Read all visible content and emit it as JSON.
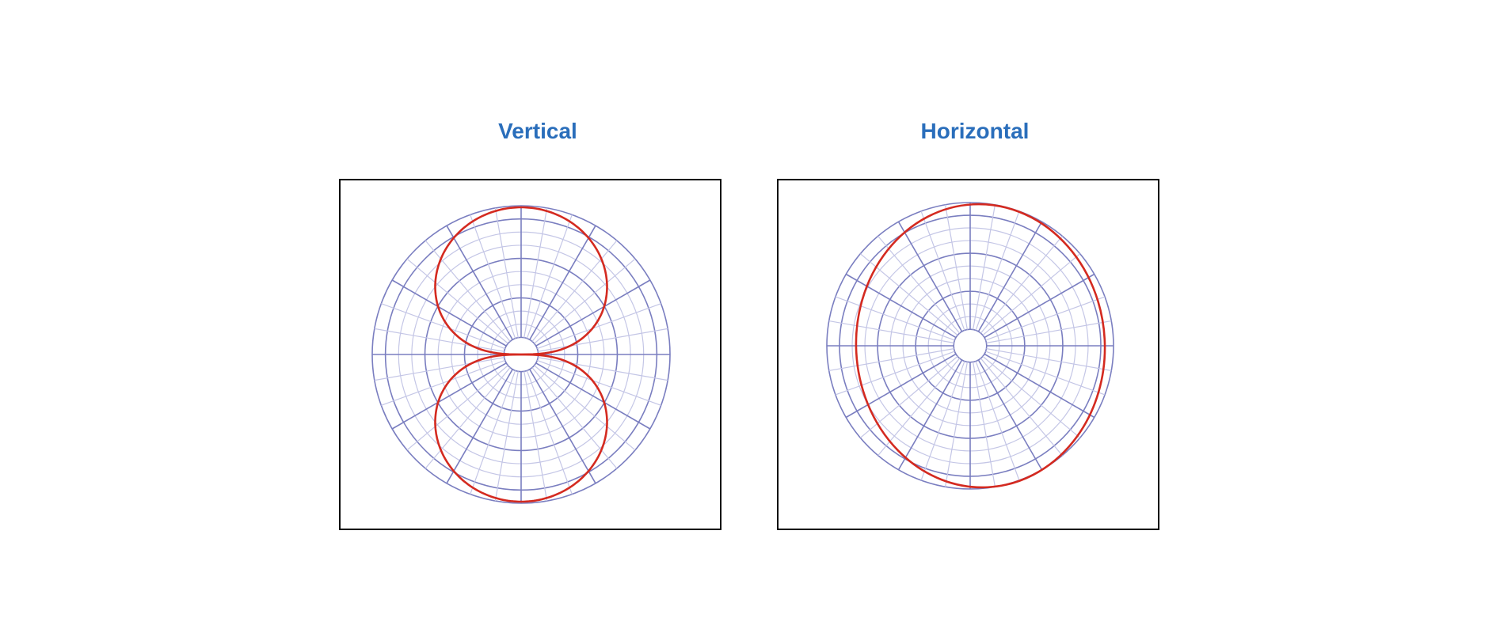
{
  "diagrams": [
    {
      "title": "Vertical"
    },
    {
      "title": "Horizontal"
    }
  ]
}
